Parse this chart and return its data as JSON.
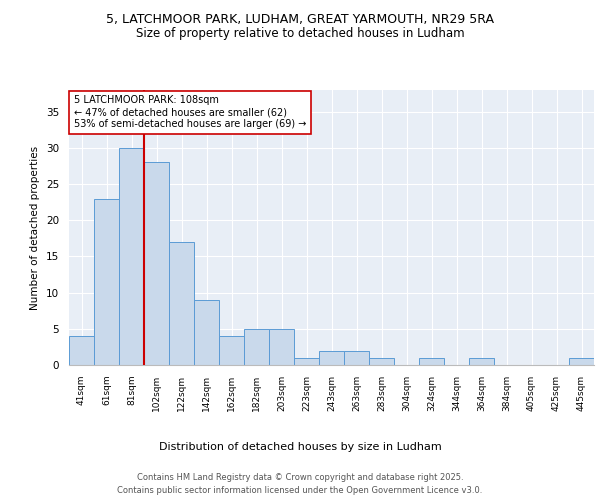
{
  "title1": "5, LATCHMOOR PARK, LUDHAM, GREAT YARMOUTH, NR29 5RA",
  "title2": "Size of property relative to detached houses in Ludham",
  "xlabel": "Distribution of detached houses by size in Ludham",
  "ylabel": "Number of detached properties",
  "bar_labels": [
    "41sqm",
    "61sqm",
    "81sqm",
    "102sqm",
    "122sqm",
    "142sqm",
    "162sqm",
    "182sqm",
    "203sqm",
    "223sqm",
    "243sqm",
    "263sqm",
    "283sqm",
    "304sqm",
    "324sqm",
    "344sqm",
    "364sqm",
    "384sqm",
    "405sqm",
    "425sqm",
    "445sqm"
  ],
  "bar_values": [
    4,
    23,
    30,
    28,
    17,
    9,
    4,
    5,
    5,
    1,
    2,
    2,
    1,
    0,
    1,
    0,
    1,
    0,
    0,
    0,
    1
  ],
  "bar_color": "#c9d9eb",
  "bar_edge_color": "#5b9bd5",
  "vline_color": "#cc0000",
  "annotation_title": "5 LATCHMOOR PARK: 108sqm",
  "annotation_line1": "← 47% of detached houses are smaller (62)",
  "annotation_line2": "53% of semi-detached houses are larger (69) →",
  "ylim": [
    0,
    38
  ],
  "yticks": [
    0,
    5,
    10,
    15,
    20,
    25,
    30,
    35
  ],
  "plot_bg_color": "#e8eef6",
  "footer1": "Contains HM Land Registry data © Crown copyright and database right 2025.",
  "footer2": "Contains public sector information licensed under the Open Government Licence v3.0."
}
